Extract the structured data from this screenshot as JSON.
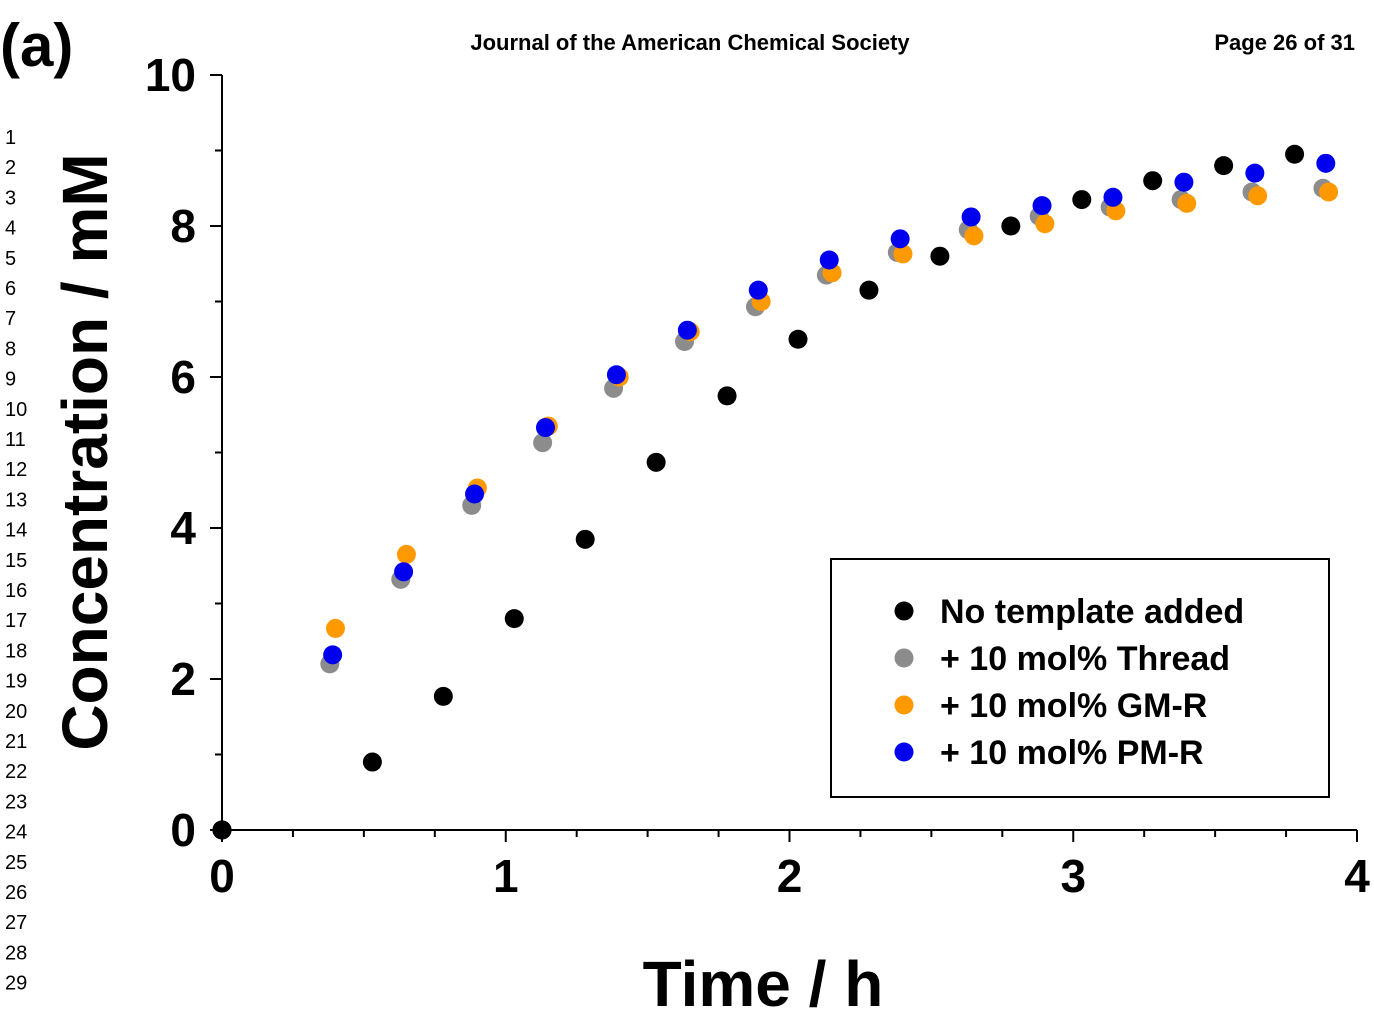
{
  "panel_label": "(a)",
  "header": {
    "journal": "Journal of the American Chemical Society",
    "page": "Page 26 of 31"
  },
  "line_numbers": [
    "1",
    "2",
    "3",
    "4",
    "5",
    "6",
    "7",
    "8",
    "9",
    "10",
    "11",
    "12",
    "13",
    "14",
    "15",
    "16",
    "17",
    "18",
    "19",
    "20",
    "21",
    "22",
    "23",
    "24",
    "25",
    "26",
    "27",
    "28",
    "29"
  ],
  "colors": {
    "no_template": "#000000",
    "thread": "#8c8c8c",
    "gm_r": "#ff9900",
    "pm_r": "#0000ee"
  },
  "chart_data": {
    "type": "scatter",
    "title": "",
    "xlabel": "Time / h",
    "ylabel": "Concentration / mM",
    "xlim": [
      0,
      4
    ],
    "ylim": [
      0,
      10
    ],
    "x_ticks": [
      "0",
      "1",
      "2",
      "3",
      "4"
    ],
    "y_ticks": [
      "0",
      "2",
      "4",
      "6",
      "8",
      "10"
    ],
    "x_tick_values": [
      0,
      1,
      2,
      3,
      4
    ],
    "y_tick_values": [
      0,
      2,
      4,
      6,
      8,
      10
    ],
    "x_minor_step": 0.25,
    "y_minor_step": 1,
    "grid": false,
    "legend_position": "bottom-right",
    "series": [
      {
        "name": "No template added",
        "color": "#000000",
        "x": [
          0.0,
          0.53,
          0.78,
          1.03,
          1.28,
          1.53,
          1.78,
          2.03,
          2.28,
          2.53,
          2.78,
          3.03,
          3.28,
          3.53,
          3.78
        ],
        "y": [
          0.0,
          0.9,
          1.77,
          2.8,
          3.85,
          4.87,
          5.75,
          6.5,
          7.15,
          7.6,
          8.0,
          8.35,
          8.6,
          8.8,
          8.95
        ]
      },
      {
        "name": "+ 10 mol% Thread",
        "color": "#8c8c8c",
        "x": [
          0.0,
          0.38,
          0.63,
          0.88,
          1.13,
          1.38,
          1.63,
          1.88,
          2.13,
          2.38,
          2.63,
          2.88,
          3.13,
          3.38,
          3.63,
          3.88
        ],
        "y": [
          0.0,
          2.2,
          3.32,
          4.3,
          5.13,
          5.85,
          6.47,
          6.93,
          7.35,
          7.65,
          7.95,
          8.13,
          8.25,
          8.35,
          8.45,
          8.5
        ]
      },
      {
        "name": "+ 10 mol% GM-R",
        "color": "#ff9900",
        "x": [
          0.0,
          0.4,
          0.65,
          0.9,
          1.15,
          1.4,
          1.65,
          1.9,
          2.15,
          2.4,
          2.65,
          2.9,
          3.15,
          3.4,
          3.65,
          3.9
        ],
        "y": [
          0.0,
          2.67,
          3.65,
          4.53,
          5.35,
          6.0,
          6.6,
          7.0,
          7.38,
          7.63,
          7.87,
          8.03,
          8.2,
          8.3,
          8.4,
          8.45
        ]
      },
      {
        "name": "+ 10 mol% PM-R",
        "color": "#0000ee",
        "x": [
          0.0,
          0.39,
          0.64,
          0.89,
          1.14,
          1.39,
          1.64,
          1.89,
          2.14,
          2.39,
          2.64,
          2.89,
          3.14,
          3.39,
          3.64,
          3.89
        ],
        "y": [
          0.0,
          2.32,
          3.42,
          4.45,
          5.33,
          6.03,
          6.62,
          7.15,
          7.55,
          7.83,
          8.12,
          8.27,
          8.38,
          8.58,
          8.7,
          8.83
        ]
      }
    ]
  }
}
